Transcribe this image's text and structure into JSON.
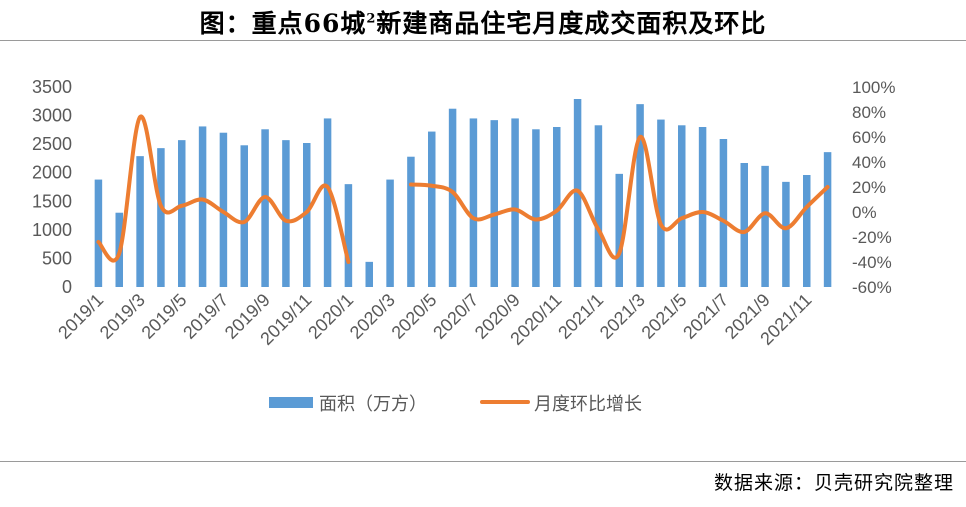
{
  "header": {
    "title_main": "图：重点66城",
    "title_sup": "2",
    "title_rest": "新建商品住宅月度成交面积及环比"
  },
  "footer": {
    "source": "数据来源：贝壳研究院整理"
  },
  "colors": {
    "bar": "#5b9bd5",
    "line": "#ed7d31",
    "text": "#595959"
  },
  "chart_data": {
    "type": "bar",
    "categories": [
      "2019/1",
      "2019/2",
      "2019/3",
      "2019/4",
      "2019/5",
      "2019/6",
      "2019/7",
      "2019/8",
      "2019/9",
      "2019/10",
      "2019/11",
      "2019/12",
      "2020/1",
      "2020/2",
      "2020/3",
      "2020/4",
      "2020/5",
      "2020/6",
      "2020/7",
      "2020/8",
      "2020/9",
      "2020/10",
      "2020/11",
      "2020/12",
      "2021/1",
      "2021/2",
      "2021/3",
      "2021/4",
      "2021/5",
      "2021/6",
      "2021/7",
      "2021/8",
      "2021/9",
      "2021/10",
      "2021/11",
      "2021/12"
    ],
    "x_tick_labels": [
      "2019/1",
      "2019/3",
      "2019/5",
      "2019/7",
      "2019/9",
      "2019/11",
      "2020/1",
      "2020/3",
      "2020/5",
      "2020/7",
      "2020/9",
      "2020/11",
      "2021/1",
      "2021/3",
      "2021/5",
      "2021/7",
      "2021/9",
      "2021/11"
    ],
    "series": [
      {
        "name": "面积（万方）",
        "type": "bar",
        "axis": "left",
        "values": [
          1880,
          1300,
          2290,
          2430,
          2570,
          2810,
          2700,
          2480,
          2760,
          2570,
          2520,
          2950,
          1800,
          440,
          1880,
          2280,
          2720,
          3120,
          2950,
          2920,
          2950,
          2760,
          2800,
          3290,
          2830,
          1980,
          3200,
          2930,
          2830,
          2800,
          2590,
          2170,
          2120,
          1840,
          1960,
          2360
        ]
      },
      {
        "name": "月度环比增长",
        "type": "line",
        "axis": "right",
        "values": [
          -24,
          -33,
          76,
          5,
          5,
          10,
          0,
          -8,
          12,
          -7,
          0,
          20,
          -40,
          null,
          null,
          22,
          21,
          16,
          -5,
          -2,
          2,
          -6,
          1,
          17,
          -14,
          -33,
          60,
          -10,
          -5,
          0,
          -7,
          -16,
          -1,
          -13,
          4,
          20
        ]
      }
    ],
    "y_left": {
      "min": 0,
      "max": 3500,
      "ticks": [
        0,
        500,
        1000,
        1500,
        2000,
        2500,
        3000,
        3500
      ]
    },
    "y_right": {
      "min": -60,
      "max": 100,
      "ticks": [
        "-60%",
        "-40%",
        "-20%",
        "0%",
        "20%",
        "40%",
        "60%",
        "80%",
        "100%"
      ]
    },
    "legend_position": "bottom"
  }
}
